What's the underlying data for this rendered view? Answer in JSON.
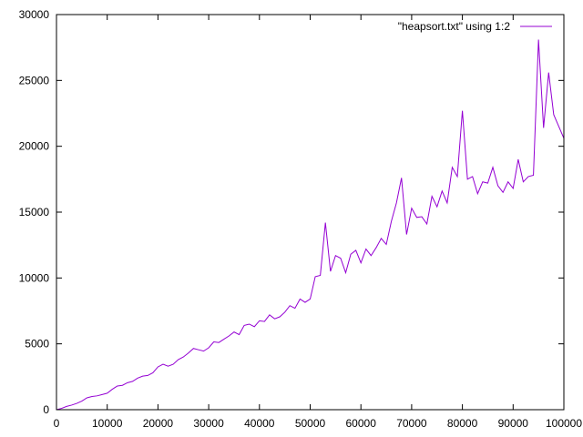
{
  "chart_data": {
    "type": "line",
    "xlabel": "",
    "ylabel": "",
    "xlim": [
      0,
      100000
    ],
    "ylim": [
      0,
      30000
    ],
    "x_ticks": [
      0,
      10000,
      20000,
      30000,
      40000,
      50000,
      60000,
      70000,
      80000,
      90000,
      100000
    ],
    "y_ticks": [
      0,
      5000,
      10000,
      15000,
      20000,
      25000,
      30000
    ],
    "x_tick_labels": [
      "0",
      "10000",
      "20000",
      "30000",
      "40000",
      "50000",
      "60000",
      "70000",
      "80000",
      "90000",
      "100000"
    ],
    "y_tick_labels": [
      "0",
      "5000",
      "10000",
      "15000",
      "20000",
      "25000",
      "30000"
    ],
    "grid": false,
    "legend_position": "top-right",
    "series": [
      {
        "name": "\"heapsort.txt\" using 1:2",
        "color": "#9400d3",
        "x": [
          0,
          1000,
          2000,
          3000,
          4000,
          5000,
          6000,
          7000,
          8000,
          9000,
          10000,
          11000,
          12000,
          13000,
          14000,
          15000,
          16000,
          17000,
          18000,
          19000,
          20000,
          21000,
          22000,
          23000,
          24000,
          25000,
          26000,
          27000,
          28000,
          29000,
          30000,
          31000,
          32000,
          33000,
          34000,
          35000,
          36000,
          37000,
          38000,
          39000,
          40000,
          41000,
          42000,
          43000,
          44000,
          45000,
          46000,
          47000,
          48000,
          49000,
          50000,
          51000,
          52000,
          53000,
          54000,
          55000,
          56000,
          57000,
          58000,
          59000,
          60000,
          61000,
          62000,
          63000,
          64000,
          65000,
          66000,
          67000,
          68000,
          69000,
          70000,
          71000,
          72000,
          73000,
          74000,
          75000,
          76000,
          77000,
          78000,
          79000,
          80000,
          81000,
          82000,
          83000,
          84000,
          85000,
          86000,
          87000,
          88000,
          89000,
          90000,
          91000,
          92000,
          93000,
          94000,
          95000,
          96000,
          97000,
          98000,
          99000,
          100000
        ],
        "y": [
          0,
          100,
          250,
          350,
          480,
          650,
          900,
          1000,
          1050,
          1150,
          1250,
          1550,
          1800,
          1850,
          2050,
          2150,
          2400,
          2550,
          2600,
          2800,
          3250,
          3450,
          3300,
          3450,
          3800,
          4000,
          4300,
          4650,
          4550,
          4450,
          4700,
          5150,
          5100,
          5350,
          5600,
          5900,
          5700,
          6400,
          6500,
          6300,
          6750,
          6700,
          7200,
          6900,
          7050,
          7400,
          7900,
          7700,
          8400,
          8150,
          8400,
          10100,
          10200,
          14200,
          10500,
          11700,
          11500,
          10400,
          11800,
          12100,
          11150,
          12200,
          11700,
          12300,
          13000,
          12550,
          14300,
          15700,
          17600,
          13300,
          15300,
          14600,
          14650,
          14100,
          16200,
          15400,
          16600,
          15700,
          18400,
          17700,
          22700,
          17500,
          17700,
          16400,
          17300,
          17200,
          18400,
          17000,
          16500,
          17300,
          16800,
          19000,
          17300,
          17700,
          17800,
          28100,
          21400,
          25600,
          22400,
          21500,
          20600
        ]
      }
    ]
  }
}
